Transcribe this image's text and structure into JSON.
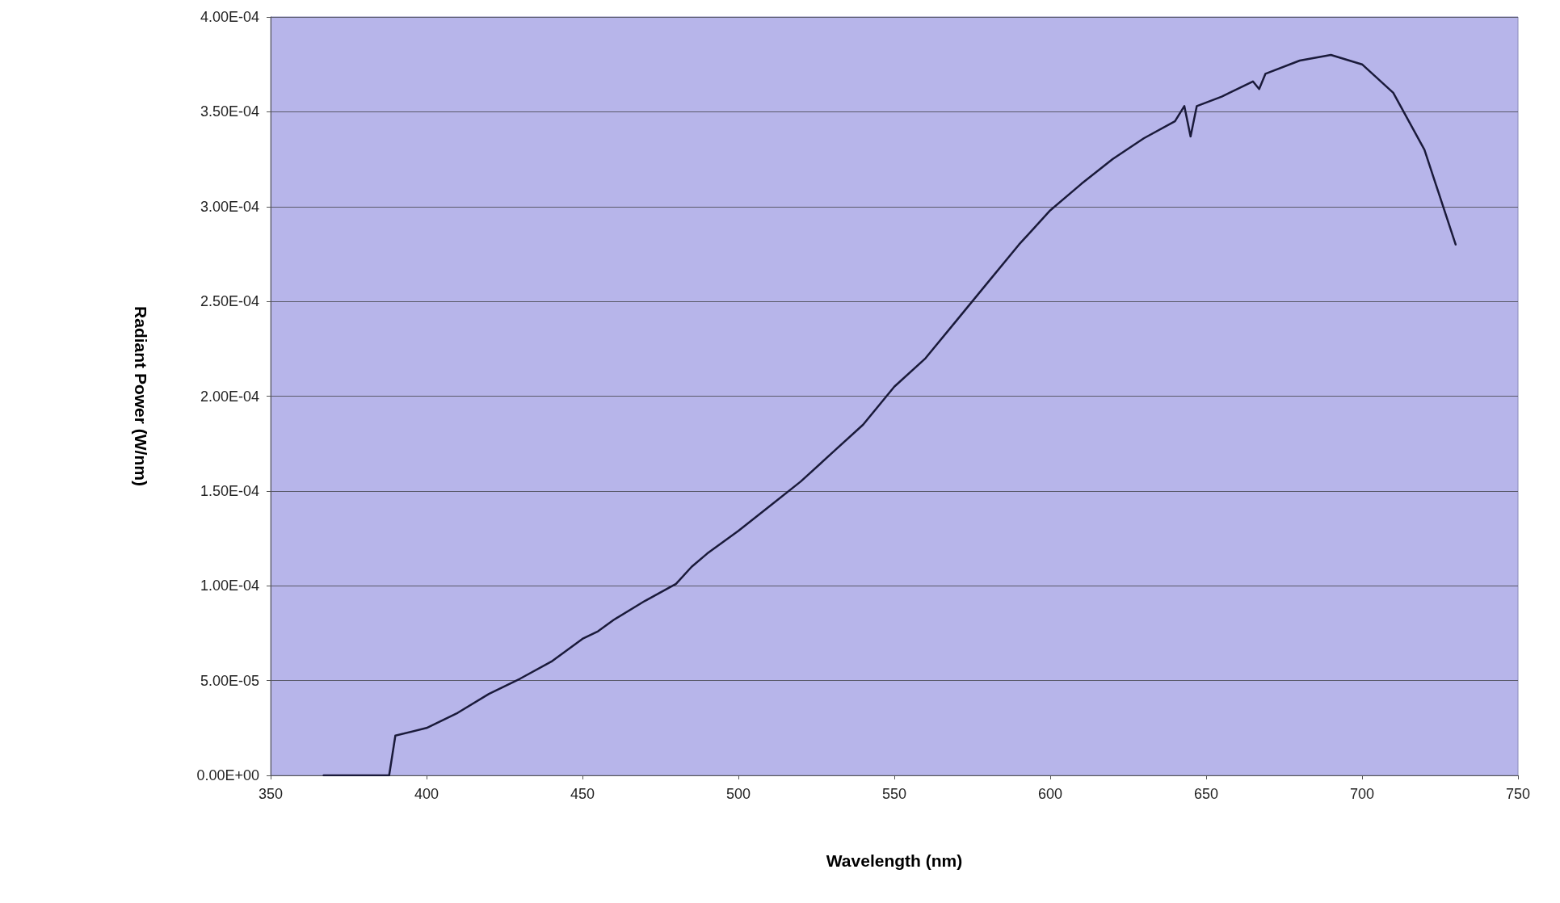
{
  "chart_data": {
    "type": "line",
    "xlabel": "Wavelength (nm)",
    "ylabel": "Radiant Power (W/nm)",
    "x": [
      367,
      378,
      388,
      390,
      400,
      410,
      420,
      430,
      440,
      450,
      455,
      460,
      470,
      480,
      485,
      490,
      500,
      510,
      520,
      530,
      540,
      545,
      550,
      560,
      570,
      580,
      590,
      600,
      610,
      620,
      630,
      640,
      643,
      645,
      647,
      655,
      665,
      667,
      669,
      680,
      690,
      700,
      710,
      720,
      730
    ],
    "series": [
      {
        "color": "#1a1a3a",
        "values": [
          0,
          0,
          0,
          2.1e-05,
          2.5e-05,
          3.3e-05,
          4.3e-05,
          5.1e-05,
          6e-05,
          7.2e-05,
          7.6e-05,
          8.2e-05,
          9.2e-05,
          0.000101,
          0.00011,
          0.000117,
          0.000129,
          0.000142,
          0.000155,
          0.00017,
          0.000185,
          0.000195,
          0.000205,
          0.00022,
          0.00024,
          0.00026,
          0.00028,
          0.000298,
          0.000312,
          0.000325,
          0.000336,
          0.000345,
          0.000353,
          0.000337,
          0.000353,
          0.000358,
          0.000366,
          0.000362,
          0.00037,
          0.000377,
          0.00038,
          0.000375,
          0.00036,
          0.00033,
          0.00028
        ]
      }
    ],
    "xlim": [
      350,
      750
    ],
    "xticks": [
      350,
      400,
      450,
      500,
      550,
      600,
      650,
      700,
      750
    ],
    "ylim": [
      0,
      0.0004
    ],
    "yticks": [
      {
        "value": 0,
        "label": "0.00E+00"
      },
      {
        "value": 5e-05,
        "label": "5.00E-05"
      },
      {
        "value": 0.0001,
        "label": "1.00E-04"
      },
      {
        "value": 0.00015,
        "label": "1.50E-04"
      },
      {
        "value": 0.0002,
        "label": "2.00E-04"
      },
      {
        "value": 0.00025,
        "label": "2.50E-04"
      },
      {
        "value": 0.0003,
        "label": "3.00E-04"
      },
      {
        "value": 0.00035,
        "label": "3.50E-04"
      },
      {
        "value": 0.0004,
        "label": "4.00E-04"
      }
    ],
    "grid": "y",
    "marker": "none",
    "line_style": "solid"
  }
}
